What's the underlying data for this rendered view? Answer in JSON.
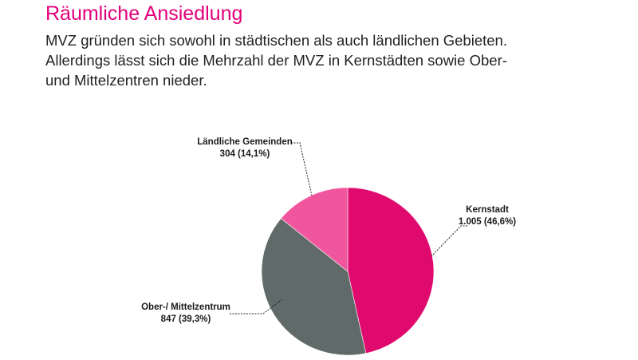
{
  "page": {
    "title": "Räumliche Ansiedlung",
    "intro_lines": [
      "MVZ gründen sich sowohl in städtischen als auch ländlichen Gebieten.",
      "Allerdings lässt sich die Mehrzahl der MVZ in Kernstädten sowie Ober-",
      "und Mittelzentren nieder."
    ]
  },
  "chart_data": {
    "type": "pie",
    "title": "",
    "slices": [
      {
        "label": "Kernstadt",
        "value": 1005,
        "value_text": "1.005 (46,6%)",
        "percent": 46.6,
        "color": "#e0096e"
      },
      {
        "label": "Ober-/ Mittelzentrum",
        "value": 847,
        "value_text": "847 (39,3%)",
        "percent": 39.3,
        "color": "#5f6a69"
      },
      {
        "label": "Ländliche Gemeinden",
        "value": 304,
        "value_text": "304 (14,1%)",
        "percent": 14.1,
        "color": "#f0569d"
      }
    ],
    "start": "12 o'clock",
    "direction": "clockwise",
    "legend": "none",
    "data_labels": "outside with leader lines"
  }
}
